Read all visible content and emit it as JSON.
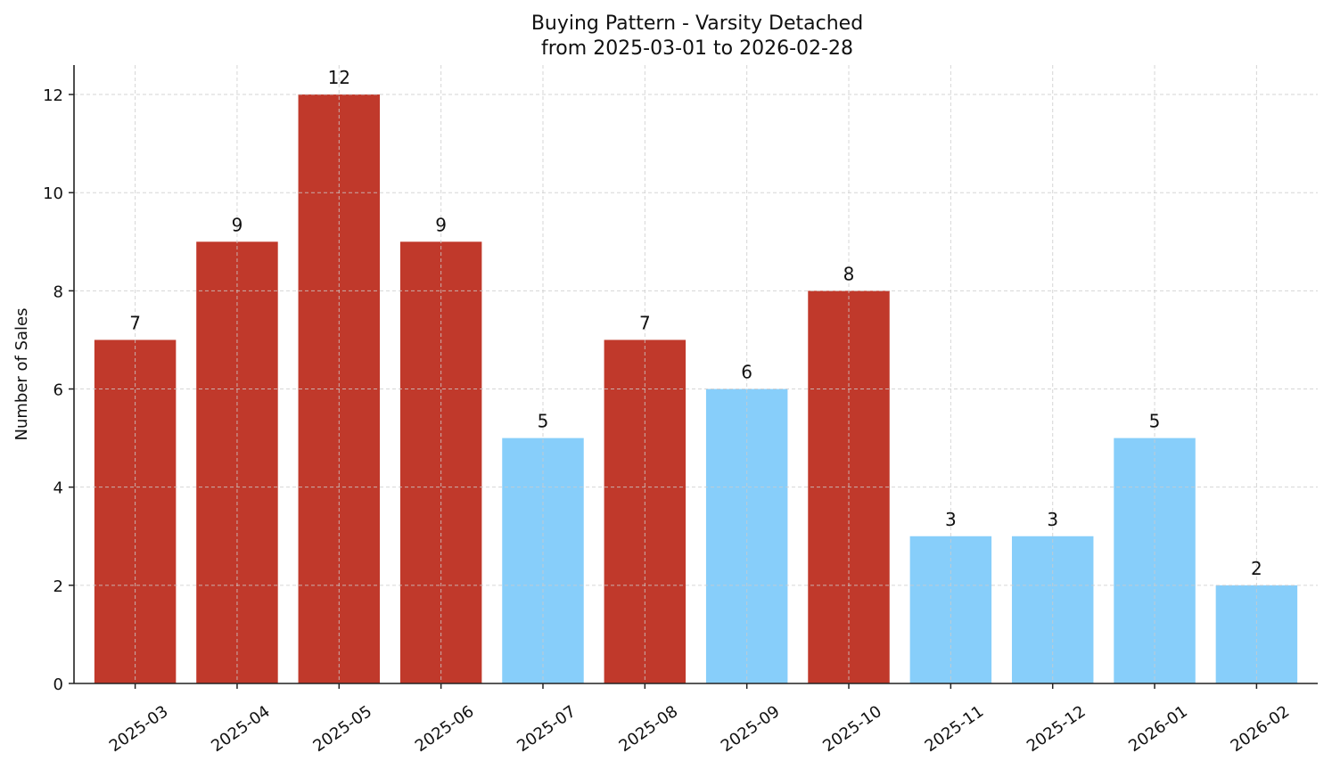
{
  "chart_data": {
    "type": "bar",
    "title": "Buying Pattern - Varsity Detached",
    "subtitle": "from 2025-03-01 to 2026-02-28",
    "xlabel": "",
    "ylabel": "Number of Sales",
    "categories": [
      "2025-03",
      "2025-04",
      "2025-05",
      "2025-06",
      "2025-07",
      "2025-08",
      "2025-09",
      "2025-10",
      "2025-11",
      "2025-12",
      "2026-01",
      "2026-02"
    ],
    "values": [
      7,
      9,
      12,
      9,
      5,
      7,
      6,
      8,
      3,
      3,
      5,
      2
    ],
    "bar_colors": [
      "#C0392B",
      "#C0392B",
      "#C0392B",
      "#C0392B",
      "#87CEFA",
      "#C0392B",
      "#87CEFA",
      "#C0392B",
      "#87CEFA",
      "#87CEFA",
      "#87CEFA",
      "#87CEFA"
    ],
    "color_legend_hint": {
      "high": "#C0392B",
      "low": "#87CEFA"
    },
    "yticks": [
      0,
      2,
      4,
      6,
      8,
      10,
      12
    ],
    "ylim": [
      0,
      12.6
    ],
    "grid": true,
    "grid_style": "dashed",
    "data_labels": true,
    "legend": null
  }
}
